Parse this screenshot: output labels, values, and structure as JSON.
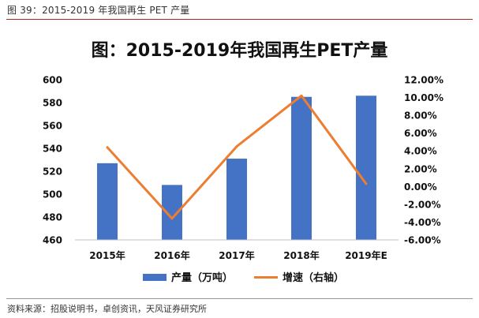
{
  "caption": "图 39：2015-2019 年我国再生 PET 产量",
  "source": "资料来源：招股说明书，卓创资讯，天风证券研究所",
  "colors": {
    "bar": "#4472C4",
    "line": "#ED7D31",
    "caption_rule": "#b22222"
  },
  "chart_data": {
    "type": "bar",
    "title": "图：2015-2019年我国再生PET产量",
    "categories": [
      "2015年",
      "2016年",
      "2017年",
      "2018年",
      "2019年E"
    ],
    "series": [
      {
        "name": "产量（万吨）",
        "type": "bar",
        "axis": "left",
        "values": [
          527,
          508,
          531,
          585,
          586
        ]
      },
      {
        "name": "增速（右轴）",
        "type": "line",
        "axis": "right",
        "values": [
          4.4,
          -3.6,
          4.5,
          10.2,
          0.3
        ]
      }
    ],
    "ylim": [
      460,
      600
    ],
    "yticks": [
      "600",
      "580",
      "560",
      "540",
      "520",
      "500",
      "480",
      "460"
    ],
    "ylim_right": [
      -6,
      12
    ],
    "yticks_right": [
      "12.00%",
      "10.00%",
      "8.00%",
      "6.00%",
      "4.00%",
      "2.00%",
      "0.00%",
      "-2.00%",
      "-4.00%",
      "-6.00%"
    ],
    "grid": false,
    "legend_position": "bottom"
  }
}
